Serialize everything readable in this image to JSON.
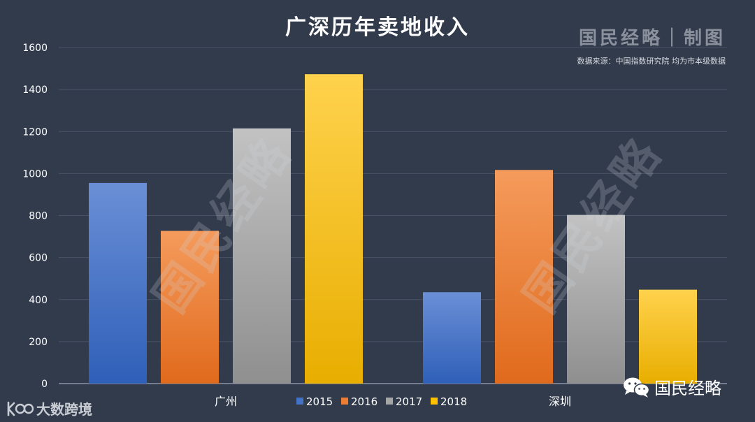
{
  "title": "广深历年卖地收入",
  "brand": "国民经略｜制图",
  "source_note": "数据来源：中国指数研究院  均为市本级数据",
  "wechat_label": "国民经略",
  "bottom_logo_text": "大数跨境",
  "watermark_text": "国民经略",
  "colors": {
    "background": "#323b4c",
    "grid": "#4a5366",
    "axis_text": "#ffffff",
    "s2015": "#4472c4",
    "s2016": "#ed7d31",
    "s2017": "#a5a5a5",
    "s2018": "#ffc000"
  },
  "chart_data": {
    "type": "bar",
    "title": "广深历年卖地收入",
    "categories": [
      "广州",
      "深圳"
    ],
    "series": [
      {
        "name": "2015",
        "values": [
          955,
          435
        ]
      },
      {
        "name": "2016",
        "values": [
          727,
          1017
        ]
      },
      {
        "name": "2017",
        "values": [
          1215,
          803
        ]
      },
      {
        "name": "2018",
        "values": [
          1473,
          447
        ]
      }
    ],
    "yticks": [
      0,
      200,
      400,
      600,
      800,
      1000,
      1200,
      1400,
      1600
    ],
    "ylim": [
      0,
      1600
    ],
    "xlabel": "",
    "ylabel": "",
    "grid": true,
    "legend": "bottom-center"
  }
}
